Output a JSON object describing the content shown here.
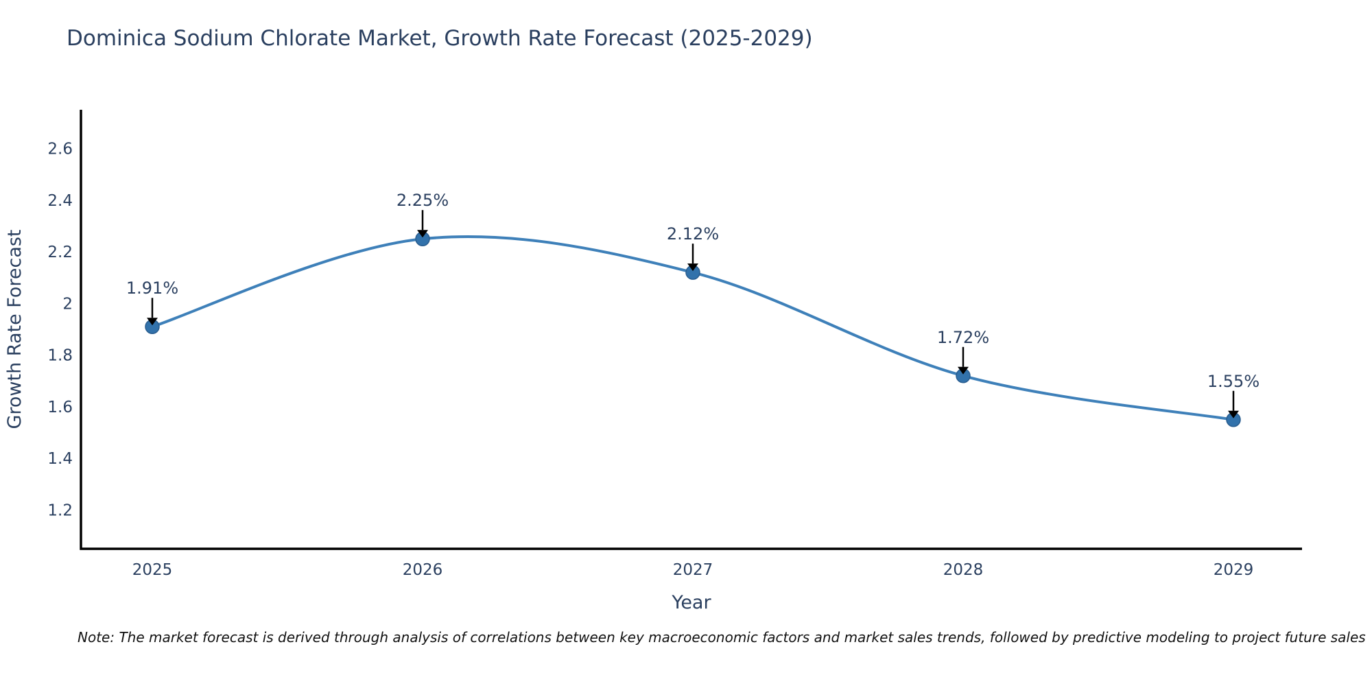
{
  "title": {
    "text": "Dominica Sodium Chlorate Market, Growth Rate Forecast (2025-2029)",
    "color": "#2a3f5f"
  },
  "chart_data": {
    "type": "line",
    "title": "Dominica Sodium Chlorate Market, Growth Rate Forecast (2025-2029)",
    "categories": [
      "2025",
      "2026",
      "2027",
      "2028",
      "2029"
    ],
    "series": [
      {
        "name": "Growth Rate Forecast",
        "values": [
          1.91,
          2.25,
          2.12,
          1.72,
          1.55
        ]
      }
    ],
    "point_labels": [
      "1.91%",
      "2.25%",
      "2.12%",
      "1.72%",
      "1.55%"
    ],
    "xlabel": "Year",
    "ylabel": "Growth Rate Forecast",
    "yticks": [
      1.2,
      1.4,
      1.6,
      1.8,
      2,
      2.2,
      2.4,
      2.6
    ],
    "ylim": [
      1.05,
      2.75
    ],
    "line_shape": "spline",
    "grid": false,
    "legend_position": "none",
    "line_color": "#3e80b9",
    "marker_color": "#3272ab",
    "marker_edge_color": "#295d8f",
    "arrow_color": "#000000",
    "axis_color": "#000000",
    "text_color": "#2a3f5f"
  },
  "note": {
    "text": "Note: The market forecast is derived through analysis of correlations between key macroeconomic factors and market sales trends, followed by predictive modeling to project future sales"
  }
}
